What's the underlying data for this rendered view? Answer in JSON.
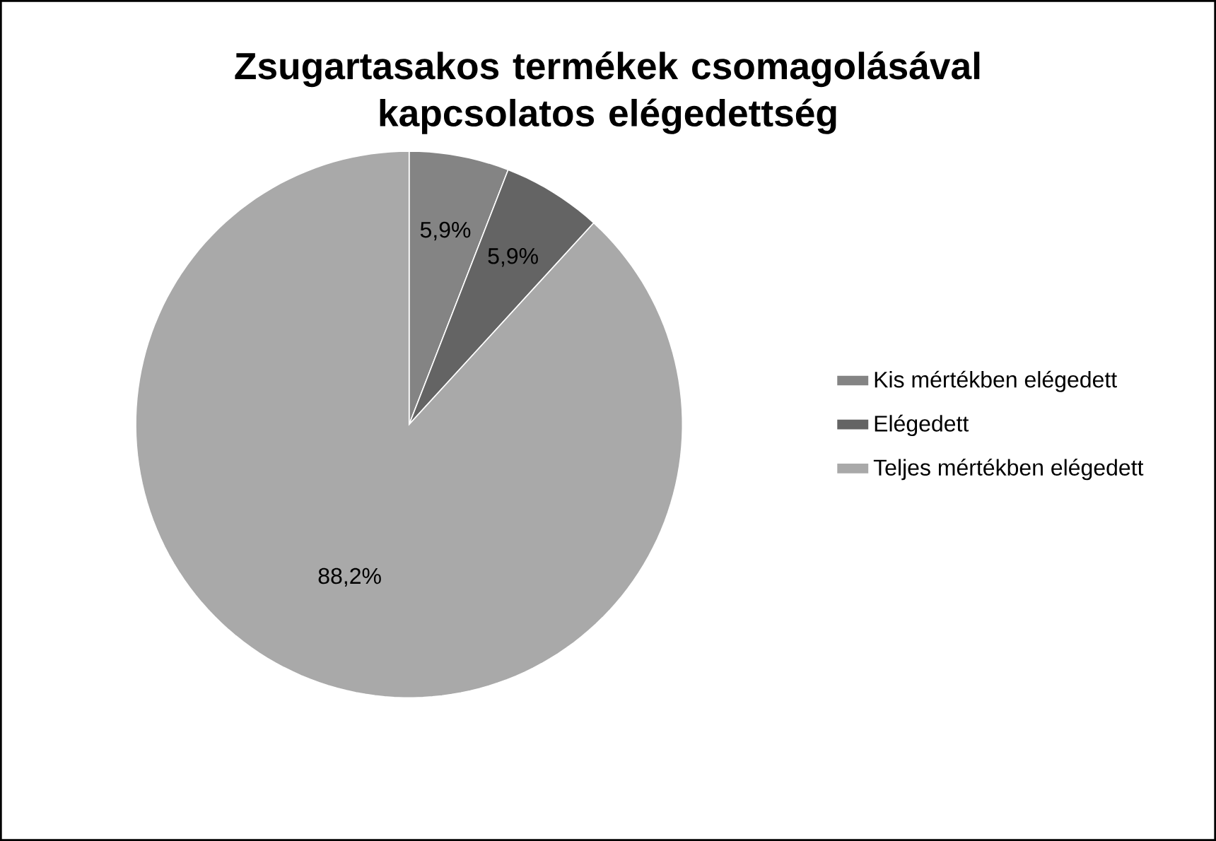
{
  "chart_data": {
    "type": "pie",
    "title": "Zsugartasakos termékek csomagolásával kapcsolatos elégedettség",
    "categories": [
      "Kis mértékben elégedett",
      "Elégedett",
      "Teljes mértékben elégedett"
    ],
    "values": [
      5.9,
      5.9,
      88.2
    ],
    "colors": [
      "#848484",
      "#646464",
      "#a9a9a9"
    ],
    "value_labels": [
      "5,9%",
      "5,9%",
      "88,2%"
    ],
    "legend": "right"
  }
}
